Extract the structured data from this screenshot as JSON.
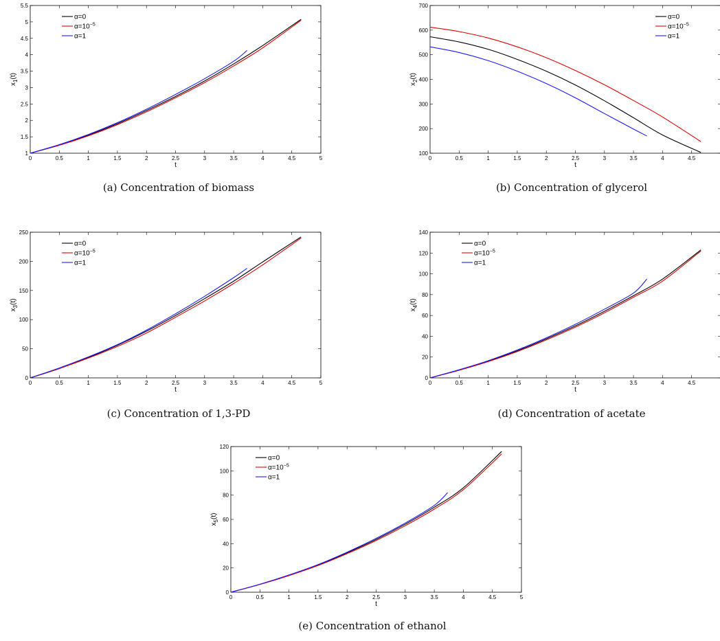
{
  "panels": [
    {
      "id": "a",
      "caption": "(a)  Concentration of biomass",
      "chart_data": {
        "type": "line",
        "xlabel": "t",
        "ylabel_base": "x",
        "ylabel_sub": "1",
        "ylabel_suffix": "(t)",
        "xlim": [
          0,
          5
        ],
        "ylim": [
          1,
          5.5
        ],
        "xticks": [
          0,
          0.5,
          1,
          1.5,
          2,
          2.5,
          3,
          3.5,
          4,
          4.5,
          5
        ],
        "yticks": [
          1,
          1.5,
          2,
          2.5,
          3,
          3.5,
          4,
          4.5,
          5,
          5.5
        ],
        "grid": false,
        "legend": "top-left",
        "series": [
          {
            "name_base": "α=0",
            "name_sup": "",
            "color": "#000000",
            "x": [
              0,
              0.5,
              1,
              1.5,
              2,
              2.5,
              3,
              3.5,
              4,
              4.66
            ],
            "y": [
              1,
              1.25,
              1.55,
              1.9,
              2.3,
              2.73,
              3.2,
              3.72,
              4.28,
              5.08
            ]
          },
          {
            "name_base": "α=10",
            "name_sup": "−5",
            "color": "#e00000",
            "x": [
              0,
              0.5,
              1,
              1.5,
              2,
              2.5,
              3,
              3.5,
              4,
              4.66
            ],
            "y": [
              1,
              1.24,
              1.53,
              1.87,
              2.26,
              2.69,
              3.15,
              3.66,
              4.21,
              5.05
            ]
          },
          {
            "name_base": "α=1",
            "name_sup": "",
            "color": "#1a1aff",
            "x": [
              0,
              0.5,
              1,
              1.5,
              2,
              2.5,
              3,
              3.5,
              3.73
            ],
            "y": [
              1,
              1.26,
              1.57,
              1.93,
              2.34,
              2.79,
              3.27,
              3.8,
              4.13
            ]
          }
        ]
      }
    },
    {
      "id": "b",
      "caption": "(b)  Concentration of glycerol",
      "chart_data": {
        "type": "line",
        "xlabel": "t",
        "ylabel_base": "x",
        "ylabel_sub": "2",
        "ylabel_suffix": "(t)",
        "xlim": [
          0,
          5
        ],
        "ylim": [
          100,
          700
        ],
        "xticks": [
          0,
          0.5,
          1,
          1.5,
          2,
          2.5,
          3,
          3.5,
          4,
          4.5
        ],
        "yticks": [
          100,
          200,
          300,
          400,
          500,
          600,
          700
        ],
        "grid": false,
        "legend": "top-right",
        "series": [
          {
            "name_base": "α=0",
            "name_sup": "",
            "color": "#000000",
            "x": [
              0,
              0.5,
              1,
              1.5,
              2,
              2.5,
              3,
              3.5,
              4,
              4.66
            ],
            "y": [
              573,
              552,
              522,
              481,
              433,
              377,
              313,
              244,
              174,
              103
            ]
          },
          {
            "name_base": "α=10",
            "name_sup": "−5",
            "color": "#e00000",
            "x": [
              0,
              0.5,
              1,
              1.5,
              2,
              2.5,
              3,
              3.5,
              4,
              4.66
            ],
            "y": [
              612,
              594,
              568,
              532,
              488,
              436,
              378,
              314,
              247,
              147
            ]
          },
          {
            "name_base": "α=1",
            "name_sup": "",
            "color": "#1a1aff",
            "x": [
              0,
              0.5,
              1,
              1.5,
              2,
              2.5,
              3,
              3.5,
              3.73
            ],
            "y": [
              532,
              509,
              476,
              433,
              383,
              325,
              261,
              198,
              170
            ]
          }
        ]
      }
    },
    {
      "id": "c",
      "caption": "(c)  Concentration of 1,3-PD",
      "chart_data": {
        "type": "line",
        "xlabel": "t",
        "ylabel_base": "x",
        "ylabel_sub": "3",
        "ylabel_suffix": "(t)",
        "xlim": [
          0,
          5
        ],
        "ylim": [
          0,
          250
        ],
        "xticks": [
          0,
          0.5,
          1,
          1.5,
          2,
          2.5,
          3,
          3.5,
          4,
          4.5,
          5
        ],
        "yticks": [
          0,
          50,
          100,
          150,
          200,
          250
        ],
        "grid": false,
        "legend": "top-left",
        "series": [
          {
            "name_base": "α=0",
            "name_sup": "",
            "color": "#000000",
            "x": [
              0,
              0.5,
              1,
              1.5,
              2,
              2.5,
              3,
              3.5,
              4,
              4.66
            ],
            "y": [
              0,
              16,
              35,
              56,
              80,
              107,
              136,
              166,
              199,
              242
            ]
          },
          {
            "name_base": "α=10",
            "name_sup": "−5",
            "color": "#e00000",
            "x": [
              0,
              0.5,
              1,
              1.5,
              2,
              2.5,
              3,
              3.5,
              4,
              4.66
            ],
            "y": [
              0,
              16,
              34,
              54,
              77,
              104,
              132,
              162,
              194,
              240
            ]
          },
          {
            "name_base": "α=1",
            "name_sup": "",
            "color": "#1a1aff",
            "x": [
              0,
              0.5,
              1,
              1.5,
              2,
              2.5,
              3,
              3.5,
              3.73
            ],
            "y": [
              0,
              17,
              36,
              57,
              82,
              110,
              140,
              172,
              188
            ]
          }
        ]
      }
    },
    {
      "id": "d",
      "caption": "(d)  Concentration of acetate",
      "chart_data": {
        "type": "line",
        "xlabel": "t",
        "ylabel_base": "x",
        "ylabel_sub": "4",
        "ylabel_suffix": "(t)",
        "xlim": [
          0,
          5
        ],
        "ylim": [
          0,
          140
        ],
        "xticks": [
          0,
          0.5,
          1,
          1.5,
          2,
          2.5,
          3,
          3.5,
          4,
          4.5
        ],
        "yticks": [
          0,
          20,
          40,
          60,
          80,
          100,
          120,
          140
        ],
        "grid": false,
        "legend": "top-left",
        "series": [
          {
            "name_base": "α=0",
            "name_sup": "",
            "color": "#000000",
            "x": [
              0,
              0.5,
              1,
              1.5,
              2,
              2.5,
              3,
              3.5,
              4,
              4.66
            ],
            "y": [
              0,
              7.5,
              16,
              26,
              37.5,
              50,
              64,
              79,
              95,
              123
            ]
          },
          {
            "name_base": "α=10",
            "name_sup": "−5",
            "color": "#e00000",
            "x": [
              0,
              0.5,
              1,
              1.5,
              2,
              2.5,
              3,
              3.5,
              4,
              4.66
            ],
            "y": [
              0,
              7.3,
              15.6,
              25.3,
              36.5,
              48.8,
              62.5,
              77.5,
              93,
              122
            ]
          },
          {
            "name_base": "α=1",
            "name_sup": "",
            "color": "#1a1aff",
            "x": [
              0,
              0.5,
              1,
              1.5,
              2,
              2.5,
              3,
              3.5,
              3.73
            ],
            "y": [
              0,
              7.8,
              16.5,
              26.8,
              38.5,
              51.5,
              66,
              81.5,
              95
            ]
          }
        ]
      }
    },
    {
      "id": "e",
      "caption": "(e)  Concentration of ethanol",
      "chart_data": {
        "type": "line",
        "xlabel": "t",
        "ylabel_base": "x",
        "ylabel_sub": "5",
        "ylabel_suffix": "(t)",
        "xlim": [
          0,
          5
        ],
        "ylim": [
          0,
          120
        ],
        "xticks": [
          0,
          0.5,
          1,
          1.5,
          2,
          2.5,
          3,
          3.5,
          4,
          4.5,
          5
        ],
        "yticks": [
          0,
          20,
          40,
          60,
          80,
          100,
          120
        ],
        "grid": false,
        "legend": "top-left",
        "series": [
          {
            "name_base": "α=0",
            "name_sup": "",
            "color": "#000000",
            "x": [
              0,
              0.5,
              1,
              1.5,
              2,
              2.5,
              3,
              3.5,
              4,
              4.66
            ],
            "y": [
              0,
              6.5,
              14,
              22.5,
              32.5,
              43.5,
              56,
              70,
              86,
              116
            ]
          },
          {
            "name_base": "α=10",
            "name_sup": "−5",
            "color": "#e00000",
            "x": [
              0,
              0.5,
              1,
              1.5,
              2,
              2.5,
              3,
              3.5,
              4,
              4.66
            ],
            "y": [
              0,
              6.4,
              13.7,
              22,
              31.8,
              42.6,
              54.8,
              68.5,
              84.5,
              114
            ]
          },
          {
            "name_base": "α=1",
            "name_sup": "",
            "color": "#1a1aff",
            "x": [
              0,
              0.5,
              1,
              1.5,
              2,
              2.5,
              3,
              3.5,
              3.73
            ],
            "y": [
              0,
              6.6,
              14.2,
              22.8,
              33,
              44.4,
              57,
              71.5,
              82
            ]
          }
        ]
      }
    }
  ]
}
